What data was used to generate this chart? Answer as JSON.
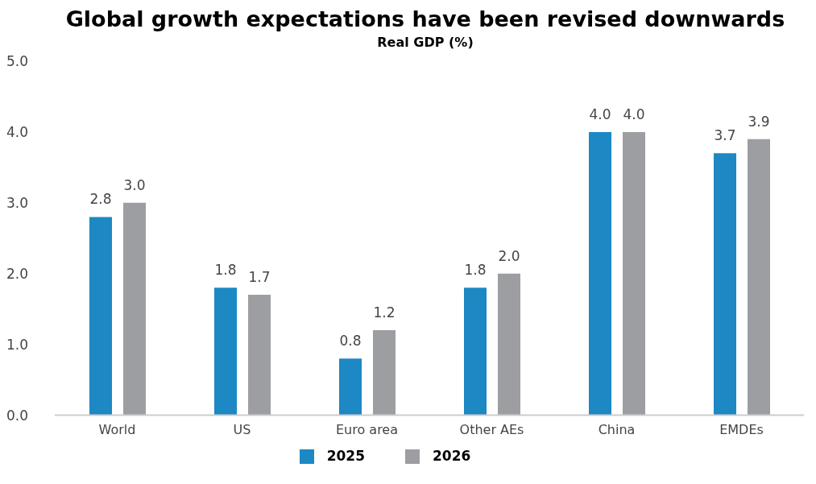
{
  "chart_data": {
    "type": "bar",
    "title": "Global growth expectations have been revised downwards",
    "subtitle": "Real GDP (%)",
    "categories": [
      "World",
      "US",
      "Euro area",
      "Other AEs",
      "China",
      "EMDEs"
    ],
    "series": [
      {
        "name": "2025",
        "color": "#1c88c4",
        "values": [
          2.8,
          1.8,
          0.8,
          1.8,
          4.0,
          3.7
        ],
        "value_labels": [
          "2.8",
          "1.8",
          "0.8",
          "1.8",
          "4.0",
          "3.7"
        ]
      },
      {
        "name": "2026",
        "color": "#9d9ea2",
        "values": [
          3.0,
          1.7,
          1.2,
          2.0,
          4.0,
          3.9
        ],
        "value_labels": [
          "3.0",
          "1.7",
          "1.2",
          "2.0",
          "4.0",
          "3.9"
        ]
      }
    ],
    "ylim": [
      0,
      5
    ],
    "yticks": [
      {
        "value": 0,
        "label": "0.0"
      },
      {
        "value": 1,
        "label": "1.0"
      },
      {
        "value": 2,
        "label": "2.0"
      },
      {
        "value": 3,
        "label": "3.0"
      },
      {
        "value": 4,
        "label": "4.0"
      },
      {
        "value": 5,
        "label": "5.0"
      }
    ],
    "grid": false,
    "legend": "bottom"
  }
}
